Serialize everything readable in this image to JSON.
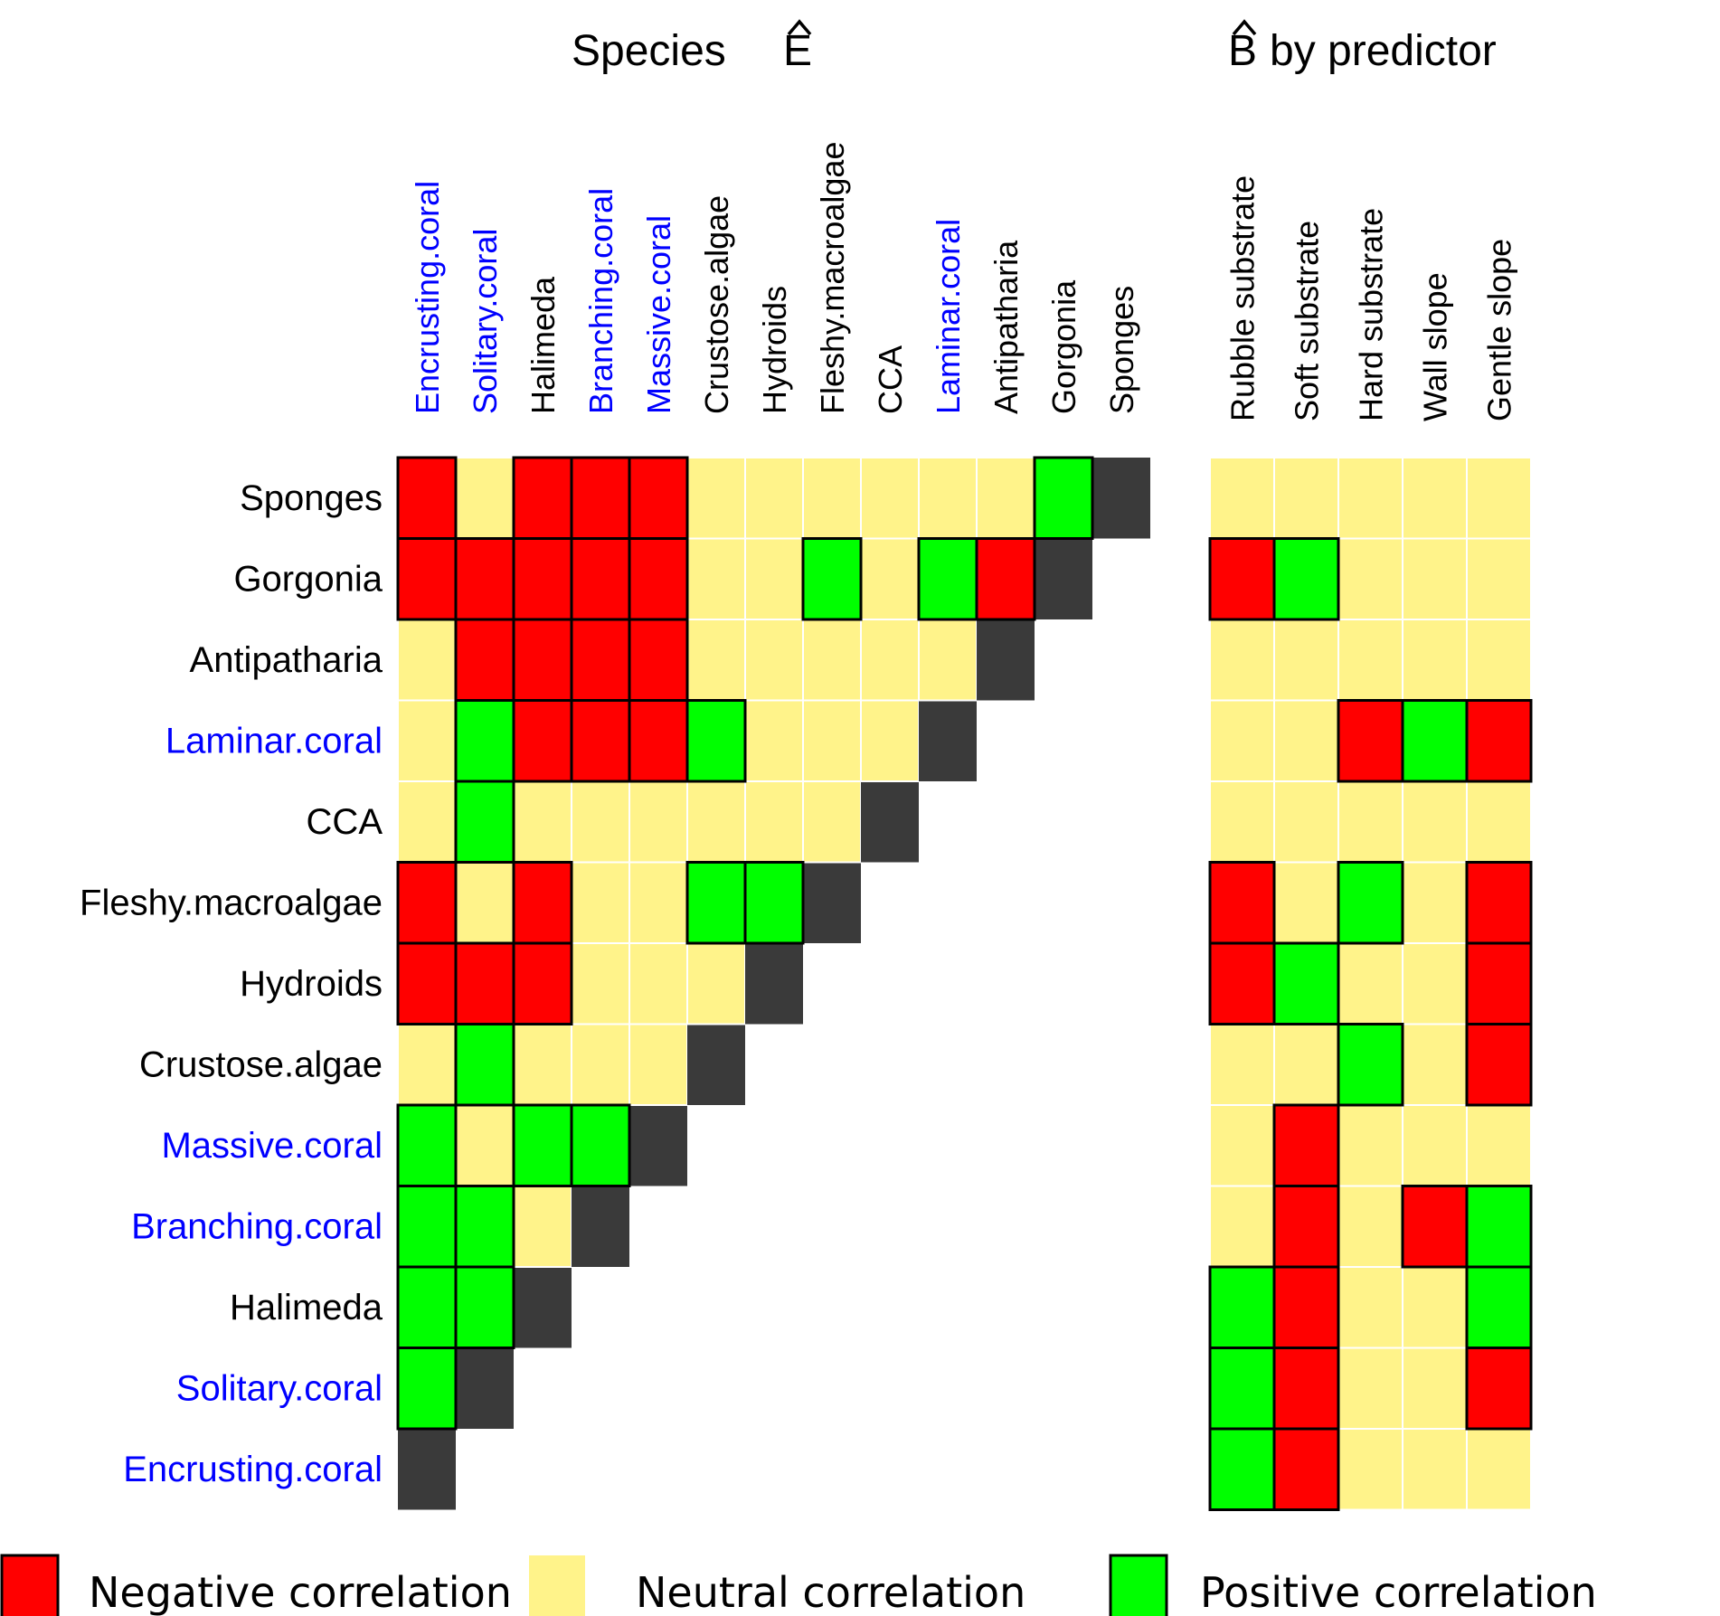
{
  "chart_data": {
    "type": "heatmap",
    "titles": {
      "left": "Species",
      "left_symbol": "E",
      "right_symbol": "B",
      "right": "by predictor"
    },
    "species": [
      "Encrusting.coral",
      "Solitary.coral",
      "Halimeda",
      "Branching.coral",
      "Massive.coral",
      "Crustose.algae",
      "Hydroids",
      "Fleshy.macroalgae",
      "CCA",
      "Laminar.coral",
      "Antipatharia",
      "Gorgonia",
      "Sponges"
    ],
    "species_colors": [
      "#0000ff",
      "#0000ff",
      "#000000",
      "#0000ff",
      "#0000ff",
      "#000000",
      "#000000",
      "#000000",
      "#000000",
      "#0000ff",
      "#000000",
      "#000000",
      "#000000"
    ],
    "row_order": [
      "Sponges",
      "Gorgonia",
      "Antipatharia",
      "Laminar.coral",
      "CCA",
      "Fleshy.macroalgae",
      "Hydroids",
      "Crustose.algae",
      "Massive.coral",
      "Branching.coral",
      "Halimeda",
      "Solitary.coral",
      "Encrusting.coral"
    ],
    "predictors": [
      "Rubble substrate",
      "Soft substrate",
      "Hard substrate",
      "Wall slope",
      "Gentle slope"
    ],
    "species_matrix": [
      [],
      [
        1
      ],
      [
        1,
        1
      ],
      [
        1,
        1,
        0
      ],
      [
        1,
        0,
        1,
        1
      ],
      [
        0,
        1,
        0,
        0,
        0
      ],
      [
        -1,
        -1,
        -1,
        0,
        0,
        0
      ],
      [
        -1,
        0,
        -1,
        0,
        0,
        1,
        1
      ],
      [
        0,
        1,
        0,
        0,
        0,
        0,
        0,
        0
      ],
      [
        0,
        1,
        -1,
        -1,
        -1,
        1,
        0,
        0,
        0
      ],
      [
        0,
        -1,
        -1,
        -1,
        -1,
        0,
        0,
        0,
        0,
        0
      ],
      [
        -1,
        -1,
        -1,
        -1,
        -1,
        0,
        0,
        1,
        0,
        1,
        -1
      ],
      [
        -1,
        0,
        -1,
        -1,
        -1,
        0,
        0,
        0,
        0,
        0,
        0,
        1
      ]
    ],
    "predictor_matrix": [
      [
        1,
        -1,
        0,
        0,
        0
      ],
      [
        1,
        -1,
        0,
        0,
        -1
      ],
      [
        1,
        -1,
        0,
        0,
        1
      ],
      [
        0,
        -1,
        0,
        -1,
        1
      ],
      [
        0,
        -1,
        0,
        0,
        0
      ],
      [
        0,
        0,
        1,
        0,
        -1
      ],
      [
        -1,
        1,
        0,
        0,
        -1
      ],
      [
        -1,
        0,
        1,
        0,
        -1
      ],
      [
        0,
        0,
        0,
        0,
        0
      ],
      [
        0,
        0,
        -1,
        1,
        -1
      ],
      [
        0,
        0,
        0,
        0,
        0
      ],
      [
        -1,
        1,
        0,
        0,
        0
      ],
      [
        0,
        0,
        0,
        0,
        0
      ]
    ],
    "legend": [
      {
        "label": "Negative correlation",
        "value": -1
      },
      {
        "label": "Neutral correlation",
        "value": 0
      },
      {
        "label": "Positive correlation",
        "value": 1
      }
    ],
    "colors": {
      "negative": "#ff0000",
      "neutral": "#fff38a",
      "positive": "#00ff00",
      "diagonal": "#3a3a3a"
    }
  }
}
